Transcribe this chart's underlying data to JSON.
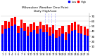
{
  "title": "Milwaukee Weather Dew Point",
  "subtitle": "Daily High/Low",
  "ylim": [
    0,
    75
  ],
  "yticks": [
    10,
    20,
    30,
    40,
    50,
    60,
    70
  ],
  "days": [
    1,
    2,
    3,
    4,
    5,
    6,
    7,
    8,
    9,
    10,
    11,
    12,
    13,
    14,
    15,
    16,
    17,
    18,
    19,
    20,
    21,
    22,
    23,
    24,
    25,
    26,
    27,
    28
  ],
  "high": [
    52,
    60,
    58,
    65,
    68,
    50,
    62,
    55,
    48,
    54,
    57,
    50,
    58,
    52,
    53,
    47,
    52,
    42,
    46,
    50,
    38,
    52,
    56,
    58,
    53,
    50,
    48,
    44
  ],
  "low": [
    35,
    44,
    46,
    50,
    53,
    36,
    46,
    40,
    30,
    38,
    42,
    34,
    44,
    38,
    37,
    30,
    35,
    26,
    29,
    34,
    22,
    35,
    40,
    42,
    36,
    35,
    32,
    30
  ],
  "bar_color_high": "#FF0000",
  "bar_color_low": "#0000FF",
  "bg_color": "#FFFFFF",
  "grid_color": "#CCCCCC",
  "title_color": "#000000",
  "dashed_vline_x": [
    13.5,
    14.5,
    15.5,
    16.5
  ],
  "bar_width": 0.38,
  "n_days": 28
}
